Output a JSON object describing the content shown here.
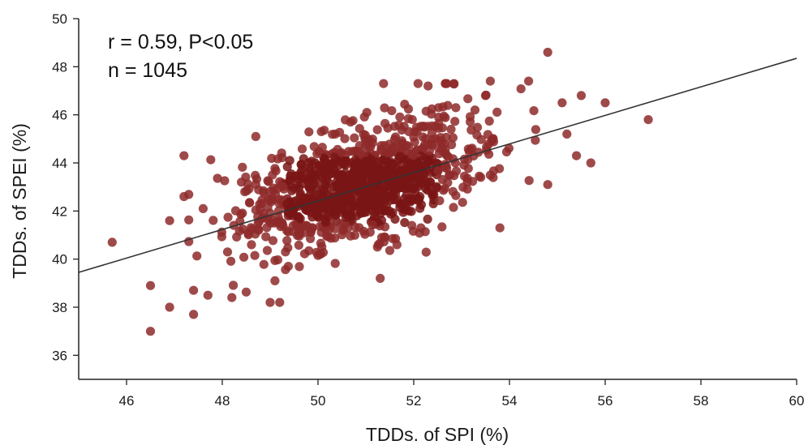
{
  "chart_data": {
    "type": "scatter",
    "xlabel": "TDDs. of SPI (%)",
    "ylabel": "TDDs. of SPEI (%)",
    "xlim": [
      45,
      60
    ],
    "ylim": [
      35,
      50
    ],
    "xticks": [
      "46",
      "48",
      "50",
      "52",
      "54",
      "56",
      "58",
      "60"
    ],
    "yticks": [
      "36",
      "38",
      "40",
      "42",
      "44",
      "46",
      "48",
      "50"
    ],
    "annotations": [
      "r = 0.59, P<0.05",
      "n = 1045"
    ],
    "n_points": 1045,
    "grid": false,
    "point_color": "#8e2a2a",
    "point_color_dense": "#7a1515",
    "line_color": "#333333",
    "regression_line": {
      "x": [
        45,
        60
      ],
      "y": [
        39.45,
        48.35
      ]
    },
    "outlier_points": [
      {
        "x": 45.7,
        "y": 40.7
      },
      {
        "x": 46.5,
        "y": 37.0
      },
      {
        "x": 46.5,
        "y": 38.9
      },
      {
        "x": 46.9,
        "y": 38.0
      },
      {
        "x": 46.9,
        "y": 41.6
      },
      {
        "x": 47.2,
        "y": 44.3
      },
      {
        "x": 47.2,
        "y": 42.6
      },
      {
        "x": 47.4,
        "y": 37.7
      },
      {
        "x": 47.4,
        "y": 38.7
      },
      {
        "x": 47.6,
        "y": 42.1
      },
      {
        "x": 47.7,
        "y": 38.5
      },
      {
        "x": 48.2,
        "y": 38.4
      },
      {
        "x": 48.4,
        "y": 43.2
      },
      {
        "x": 48.7,
        "y": 45.1
      },
      {
        "x": 49.0,
        "y": 38.2
      },
      {
        "x": 49.2,
        "y": 38.2
      },
      {
        "x": 49.1,
        "y": 39.1
      },
      {
        "x": 52.3,
        "y": 47.2
      },
      {
        "x": 53.5,
        "y": 46.8
      },
      {
        "x": 53.6,
        "y": 47.4
      },
      {
        "x": 54.4,
        "y": 47.4
      },
      {
        "x": 54.8,
        "y": 48.6
      },
      {
        "x": 55.1,
        "y": 46.5
      },
      {
        "x": 55.2,
        "y": 45.2
      },
      {
        "x": 55.5,
        "y": 46.8
      },
      {
        "x": 55.4,
        "y": 44.3
      },
      {
        "x": 55.7,
        "y": 44.0
      },
      {
        "x": 56.0,
        "y": 46.5
      },
      {
        "x": 56.9,
        "y": 45.8
      },
      {
        "x": 54.8,
        "y": 43.1
      },
      {
        "x": 53.8,
        "y": 41.3
      },
      {
        "x": 51.3,
        "y": 39.2
      }
    ]
  }
}
